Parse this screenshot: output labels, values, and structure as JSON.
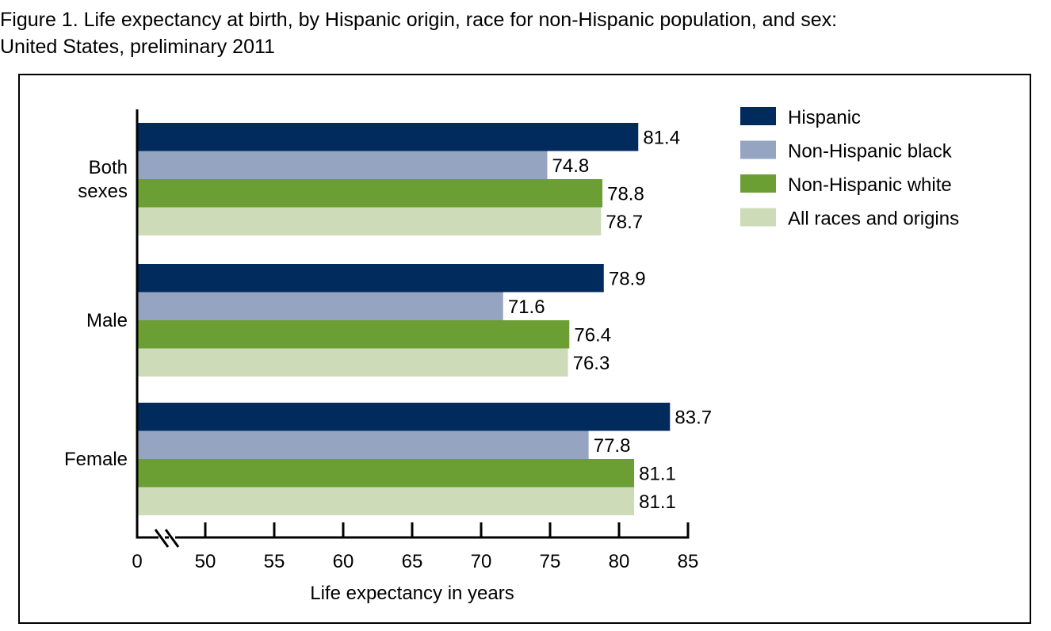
{
  "title": {
    "line1": "Figure 1. Life expectancy at birth, by Hispanic origin, race for non-Hispanic population, and sex:",
    "line2": "United States, preliminary 2011"
  },
  "chart_data": {
    "type": "bar",
    "orientation": "horizontal",
    "title": "Figure 1. Life expectancy at birth, by Hispanic origin, race for non-Hispanic population, and sex: United States, preliminary 2011",
    "xlabel": "Life expectancy in years",
    "ylabel": "",
    "xlim": [
      0,
      85
    ],
    "axis_break": [
      0,
      50
    ],
    "xticks": [
      "0",
      "50",
      "55",
      "60",
      "65",
      "70",
      "75",
      "80",
      "85"
    ],
    "tick_values": [
      50,
      55,
      60,
      65,
      70,
      75,
      80,
      85
    ],
    "grid": false,
    "legend_position": "top-right",
    "categories": [
      [
        "Both",
        "sexes"
      ],
      [
        "Male"
      ],
      [
        "Female"
      ]
    ],
    "series": [
      {
        "name": "Hispanic",
        "color": "#002b5c",
        "values": [
          81.4,
          78.9,
          83.7
        ]
      },
      {
        "name": "Non-Hispanic black",
        "color": "#95a4c1",
        "values": [
          74.8,
          71.6,
          77.8
        ]
      },
      {
        "name": "Non-Hispanic white",
        "color": "#6b9e33",
        "values": [
          78.8,
          76.4,
          81.1
        ]
      },
      {
        "name": "All races and origins",
        "color": "#cddbb8",
        "values": [
          78.7,
          76.3,
          81.1
        ]
      }
    ]
  }
}
